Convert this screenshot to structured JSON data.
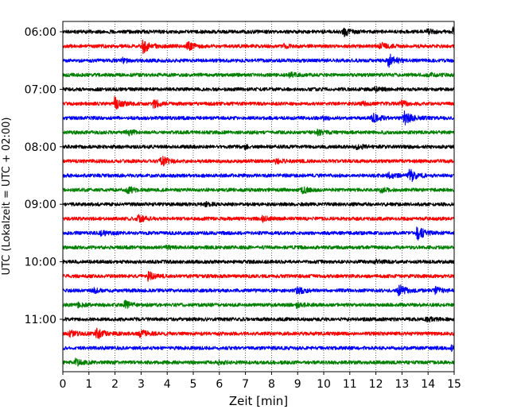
{
  "chart_data": {
    "type": "line",
    "title": "",
    "xlabel": "Zeit  [min]",
    "ylabel": "UTC (Lokalzeit = UTC + 02:00)",
    "xlim": [
      0,
      15
    ],
    "x_ticks": [
      "0",
      "1",
      "2",
      "3",
      "4",
      "5",
      "6",
      "7",
      "8",
      "9",
      "10",
      "11",
      "12",
      "13",
      "14",
      "15"
    ],
    "y_ticks": [
      "06:00",
      "07:00",
      "08:00",
      "09:00",
      "10:00",
      "11:00"
    ],
    "grid": "vertical dotted",
    "interval_minutes": 15,
    "trace_colors": [
      "#000000",
      "#ff0000",
      "#0000ff",
      "#008000"
    ],
    "traces": [
      {
        "start": "06:00",
        "events": [
          [
            10.8,
            0.6
          ],
          [
            15.0,
            0.8
          ],
          [
            14.0,
            0.3
          ]
        ]
      },
      {
        "start": "06:15",
        "events": [
          [
            3.1,
            1.0
          ],
          [
            4.8,
            0.7
          ],
          [
            12.2,
            0.5
          ],
          [
            8.5,
            0.25
          ]
        ]
      },
      {
        "start": "06:30",
        "events": [
          [
            12.5,
            1.1
          ],
          [
            2.3,
            0.3
          ]
        ]
      },
      {
        "start": "06:45",
        "events": [
          [
            8.7,
            0.3
          ],
          [
            14.0,
            0.3
          ]
        ]
      },
      {
        "start": "07:00",
        "events": [
          [
            12.0,
            0.3
          ]
        ]
      },
      {
        "start": "07:15",
        "events": [
          [
            2.0,
            1.0
          ],
          [
            3.5,
            0.6
          ],
          [
            13.0,
            0.4
          ],
          [
            11.5,
            0.2
          ]
        ]
      },
      {
        "start": "07:30",
        "events": [
          [
            13.1,
            1.1
          ],
          [
            11.9,
            0.6
          ],
          [
            10.0,
            0.2
          ]
        ]
      },
      {
        "start": "07:45",
        "events": [
          [
            2.5,
            0.4
          ],
          [
            9.8,
            0.3
          ]
        ]
      },
      {
        "start": "08:00",
        "events": [
          [
            11.3,
            0.4
          ],
          [
            7.0,
            0.2
          ]
        ]
      },
      {
        "start": "08:15",
        "events": [
          [
            3.8,
            0.7
          ],
          [
            8.2,
            0.25
          ]
        ]
      },
      {
        "start": "08:30",
        "events": [
          [
            13.3,
            1.1
          ],
          [
            12.5,
            0.4
          ]
        ]
      },
      {
        "start": "08:45",
        "events": [
          [
            2.5,
            0.5
          ],
          [
            9.2,
            0.5
          ],
          [
            12.2,
            0.3
          ]
        ]
      },
      {
        "start": "09:00",
        "events": [
          [
            5.5,
            0.2
          ]
        ]
      },
      {
        "start": "09:15",
        "events": [
          [
            2.9,
            0.5
          ],
          [
            7.7,
            0.4
          ]
        ]
      },
      {
        "start": "09:30",
        "events": [
          [
            13.6,
            1.1
          ],
          [
            1.5,
            0.4
          ]
        ]
      },
      {
        "start": "09:45",
        "events": [
          [
            4.0,
            0.2
          ]
        ]
      },
      {
        "start": "10:00",
        "events": [
          [
            12.0,
            0.2
          ]
        ]
      },
      {
        "start": "10:15",
        "events": [
          [
            3.3,
            0.6
          ]
        ]
      },
      {
        "start": "10:30",
        "events": [
          [
            12.9,
            0.9
          ],
          [
            9.0,
            0.5
          ],
          [
            14.3,
            0.5
          ],
          [
            1.2,
            0.3
          ]
        ]
      },
      {
        "start": "10:45",
        "events": [
          [
            2.4,
            0.6
          ],
          [
            0.6,
            0.3
          ],
          [
            9.0,
            0.3
          ]
        ]
      },
      {
        "start": "11:00",
        "events": [
          [
            14.0,
            0.3
          ]
        ]
      },
      {
        "start": "11:15",
        "events": [
          [
            1.3,
            1.0
          ],
          [
            3.0,
            0.6
          ],
          [
            0.3,
            0.4
          ]
        ]
      },
      {
        "start": "11:30",
        "events": [
          [
            14.9,
            0.3
          ]
        ]
      },
      {
        "start": "11:45",
        "events": [
          [
            0.5,
            0.5
          ],
          [
            6.0,
            0.2
          ]
        ]
      }
    ]
  }
}
